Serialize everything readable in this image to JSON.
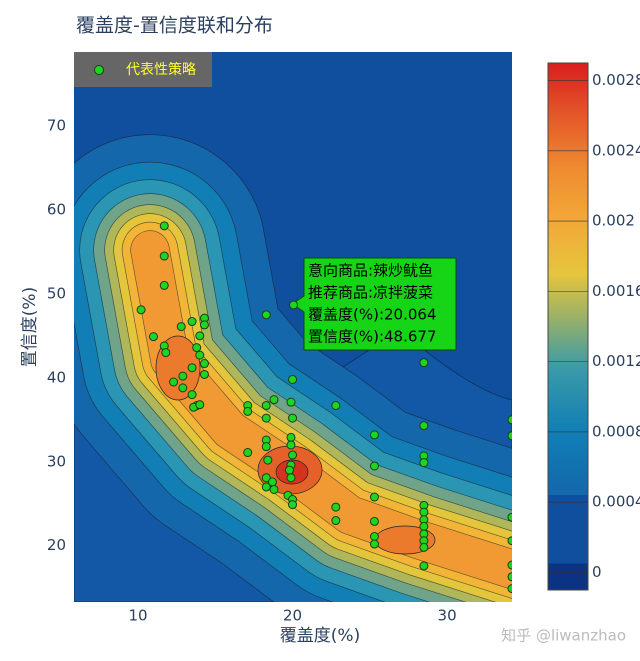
{
  "chart_data": {
    "type": "contour-scatter",
    "title": "覆盖度-置信度联和分布",
    "x_label": "覆盖度(%)",
    "y_label": "置信度(%)",
    "xlim": [
      5.86,
      34.2
    ],
    "ylim": [
      13.3,
      78.8
    ],
    "xticks": [
      10,
      20,
      30
    ],
    "yticks": [
      20,
      30,
      40,
      50,
      60,
      70
    ],
    "colorbar": {
      "lim": [
        -0.0001,
        0.0029
      ],
      "ticks": [
        0,
        0.0004,
        0.0008,
        0.0012,
        0.0016,
        0.002,
        0.0024,
        0.0028
      ]
    },
    "series": [
      {
        "name": "代表性策略",
        "color": "#1fd51f",
        "x": [
          11.7,
          11.7,
          11.7,
          10.2,
          11.0,
          11.7,
          11.8,
          12.8,
          13.5,
          14.3,
          14.3,
          14.0,
          13.8,
          14.0,
          14.3,
          14.3,
          13.5,
          12.9,
          12.3,
          12.9,
          13.5,
          13.8,
          13.6,
          14.0,
          17.1,
          17.1,
          18.3,
          18.8,
          19.9,
          20.0,
          18.3,
          20.0,
          22.8,
          18.3,
          18.3,
          19.9,
          19.9,
          20.0,
          17.1,
          18.4,
          19.9,
          19.8,
          19.9,
          18.3,
          18.7,
          18.3,
          18.8,
          19.7,
          20.0,
          20.0,
          22.8,
          22.8,
          20.064,
          18.3,
          25.3,
          25.3,
          25.3,
          25.3,
          25.3,
          25.3,
          28.5,
          28.5,
          28.5,
          28.5,
          28.5,
          28.5,
          28.5,
          28.5,
          28.5,
          28.5,
          28.5,
          28.5,
          34.2,
          34.2,
          34.2,
          34.2,
          34.2,
          34.2,
          34.2
        ],
        "values": [
          58.1,
          54.5,
          51.0,
          48.1,
          44.9,
          43.8,
          43.0,
          46.1,
          46.7,
          47.1,
          46.3,
          45.0,
          43.6,
          42.7,
          41.7,
          40.4,
          41.2,
          40.2,
          39.5,
          38.8,
          38.0,
          36.7,
          36.5,
          36.8,
          36.7,
          36.0,
          36.7,
          37.4,
          37.1,
          35.2,
          35.2,
          39.8,
          36.7,
          32.6,
          31.8,
          32.9,
          32.0,
          30.8,
          31.1,
          30.2,
          29.6,
          29.0,
          28.1,
          28.1,
          27.6,
          27.0,
          26.7,
          26.0,
          25.5,
          24.9,
          24.6,
          23.0,
          48.677,
          47.5,
          33.2,
          29.5,
          25.8,
          22.9,
          21.1,
          20.2,
          41.8,
          34.3,
          30.7,
          29.9,
          24.8,
          24.0,
          23.1,
          22.3,
          21.4,
          20.6,
          19.8,
          17.6,
          35.0,
          33.1,
          23.4,
          20.6,
          17.7,
          16.3,
          14.9
        ]
      }
    ],
    "hover": {
      "lines": [
        "意向商品:辣炒鱿鱼",
        "推荐商品:凉拌菠菜",
        "覆盖度(%):20.064",
        "置信度(%):48.677"
      ]
    },
    "watermark": "知乎 @liwanzhao"
  }
}
